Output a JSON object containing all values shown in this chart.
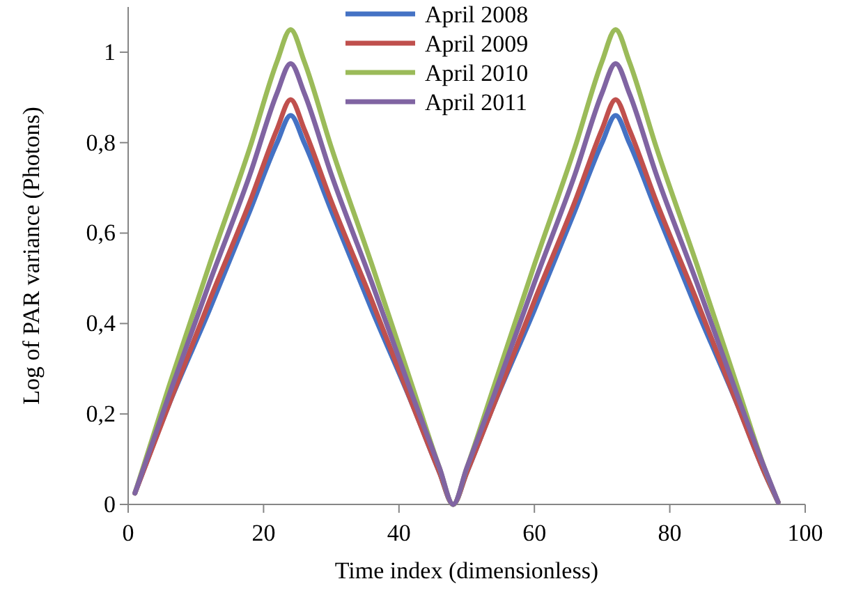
{
  "chart_data": {
    "type": "line",
    "xlabel": "Time index (dimensionless)",
    "ylabel": "Log of PAR variance (Photons)",
    "x": [
      1,
      6,
      12,
      18,
      22,
      24,
      26,
      30,
      36,
      42,
      46,
      48,
      50,
      54,
      60,
      66,
      70,
      72,
      74,
      78,
      84,
      90,
      94,
      96
    ],
    "xlim": [
      0,
      100
    ],
    "xticks": [
      0,
      20,
      40,
      60,
      80,
      100
    ],
    "ylim": [
      0,
      1.1
    ],
    "yticks": [
      0,
      {
        "value": 0.2,
        "label": "0,2"
      },
      {
        "value": 0.4,
        "label": "0,4"
      },
      {
        "value": 0.6,
        "label": "0,6"
      },
      {
        "value": 0.8,
        "label": "0,8"
      },
      1
    ],
    "grid": false,
    "legend": "top",
    "marker": "none",
    "line_style": "solid",
    "series": [
      {
        "name": "April 2008",
        "color": "#4472c4",
        "values": [
          0.025,
          0.22,
          0.43,
          0.65,
          0.8,
          0.86,
          0.8,
          0.65,
          0.43,
          0.22,
          0.07,
          0,
          0.07,
          0.22,
          0.43,
          0.65,
          0.8,
          0.86,
          0.8,
          0.65,
          0.43,
          0.22,
          0.07,
          0.005
        ]
      },
      {
        "name": "April 2009",
        "color": "#c0504d",
        "values": [
          0.025,
          0.22,
          0.45,
          0.67,
          0.83,
          0.895,
          0.83,
          0.67,
          0.45,
          0.22,
          0.07,
          0,
          0.07,
          0.22,
          0.45,
          0.67,
          0.83,
          0.895,
          0.83,
          0.67,
          0.45,
          0.22,
          0.07,
          0.005
        ]
      },
      {
        "name": "April 2010",
        "color": "#9bbb59",
        "values": [
          0.025,
          0.26,
          0.53,
          0.79,
          0.98,
          1.05,
          0.98,
          0.79,
          0.53,
          0.26,
          0.08,
          0,
          0.08,
          0.26,
          0.53,
          0.79,
          0.98,
          1.05,
          0.98,
          0.79,
          0.53,
          0.26,
          0.08,
          0.005
        ]
      },
      {
        "name": "April 2011",
        "color": "#8064a2",
        "values": [
          0.025,
          0.24,
          0.49,
          0.73,
          0.91,
          0.975,
          0.91,
          0.73,
          0.49,
          0.24,
          0.08,
          0,
          0.08,
          0.24,
          0.49,
          0.73,
          0.91,
          0.975,
          0.91,
          0.73,
          0.49,
          0.24,
          0.08,
          0.005
        ]
      }
    ]
  }
}
